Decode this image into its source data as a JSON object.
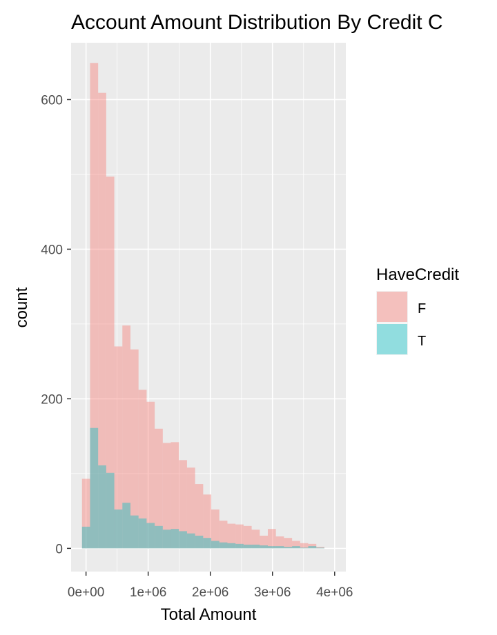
{
  "chart_data": {
    "type": "bar",
    "title": "Account Amount Distribution By Credit C",
    "xlabel": "Total Amount",
    "ylabel": "count",
    "x_ticks": [
      {
        "value": 0,
        "label": "0e+00"
      },
      {
        "value": 1000000,
        "label": "1e+06"
      },
      {
        "value": 2000000,
        "label": "2e+06"
      },
      {
        "value": 3000000,
        "label": "3e+06"
      },
      {
        "value": 4000000,
        "label": "4e+06"
      }
    ],
    "y_ticks": [
      {
        "value": 0,
        "label": "0"
      },
      {
        "value": 200,
        "label": "200"
      },
      {
        "value": 400,
        "label": "400"
      },
      {
        "value": 600,
        "label": "600"
      }
    ],
    "xlim": [
      -240000,
      4180000
    ],
    "ylim": [
      -31,
      676
    ],
    "bin_start": -65000,
    "bin_width": 130000,
    "grid": true,
    "legend": {
      "title": "HaveCredit",
      "placement": "right"
    },
    "series": [
      {
        "name": "F",
        "color": "#F8766D",
        "values": [
          93,
          649,
          609,
          497,
          270,
          298,
          266,
          212,
          196,
          160,
          141,
          142,
          118,
          108,
          86,
          72,
          52,
          37,
          33,
          32,
          30,
          25,
          17,
          26,
          16,
          14,
          10,
          7,
          6,
          2
        ]
      },
      {
        "name": "T",
        "color": "#00BFC4",
        "values": [
          29,
          161,
          111,
          101,
          52,
          61,
          44,
          40,
          34,
          30,
          25,
          26,
          23,
          20,
          17,
          14,
          10,
          8,
          7,
          6,
          5,
          5,
          4,
          3,
          3,
          2,
          3,
          1,
          3,
          1
        ]
      }
    ]
  }
}
